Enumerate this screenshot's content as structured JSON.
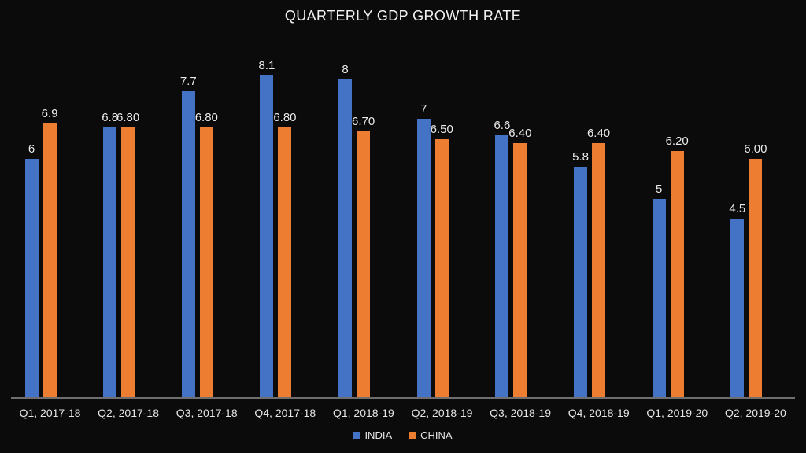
{
  "title": "QUARTERLY GDP GROWTH RATE",
  "colors": {
    "background": "#0b0b0b",
    "india": "#4472c4",
    "china": "#ed7d31",
    "axis_line": "#6e6e6e",
    "label_text": "#ececec",
    "axis_text": "#e6e6e6",
    "title_text": "#f2f2f2"
  },
  "chart_data": {
    "type": "bar",
    "title": "QUARTERLY GDP GROWTH RATE",
    "categories": [
      "Q1, 2017-18",
      "Q2, 2017-18",
      "Q3, 2017-18",
      "Q4, 2017-18",
      "Q1, 2018-19",
      "Q2, 2018-19",
      "Q3, 2018-19",
      "Q4, 2018-19",
      "Q1, 2019-20",
      "Q2, 2019-20"
    ],
    "series": [
      {
        "name": "INDIA",
        "color": "#4472c4",
        "values": [
          6,
          6.8,
          7.7,
          8.1,
          8,
          7,
          6.6,
          5.8,
          5,
          4.5
        ],
        "labels": [
          "6",
          "6.8",
          "7.7",
          "8.1",
          "8",
          "7",
          "6.6",
          "5.8",
          "5",
          "4.5"
        ]
      },
      {
        "name": "CHINA",
        "color": "#ed7d31",
        "values": [
          6.9,
          6.8,
          6.8,
          6.8,
          6.7,
          6.5,
          6.4,
          6.4,
          6.2,
          6.0
        ],
        "labels": [
          "6.9",
          "6.80",
          "6.80",
          "6.80",
          "6.70",
          "6.50",
          "6.40",
          "6.40",
          "6.20",
          "6.00"
        ]
      }
    ],
    "xlabel": "",
    "ylabel": "",
    "ylim": [
      0,
      9
    ],
    "grid": false,
    "y_axis_visible": false,
    "data_labels": true,
    "legend_position": "bottom"
  }
}
